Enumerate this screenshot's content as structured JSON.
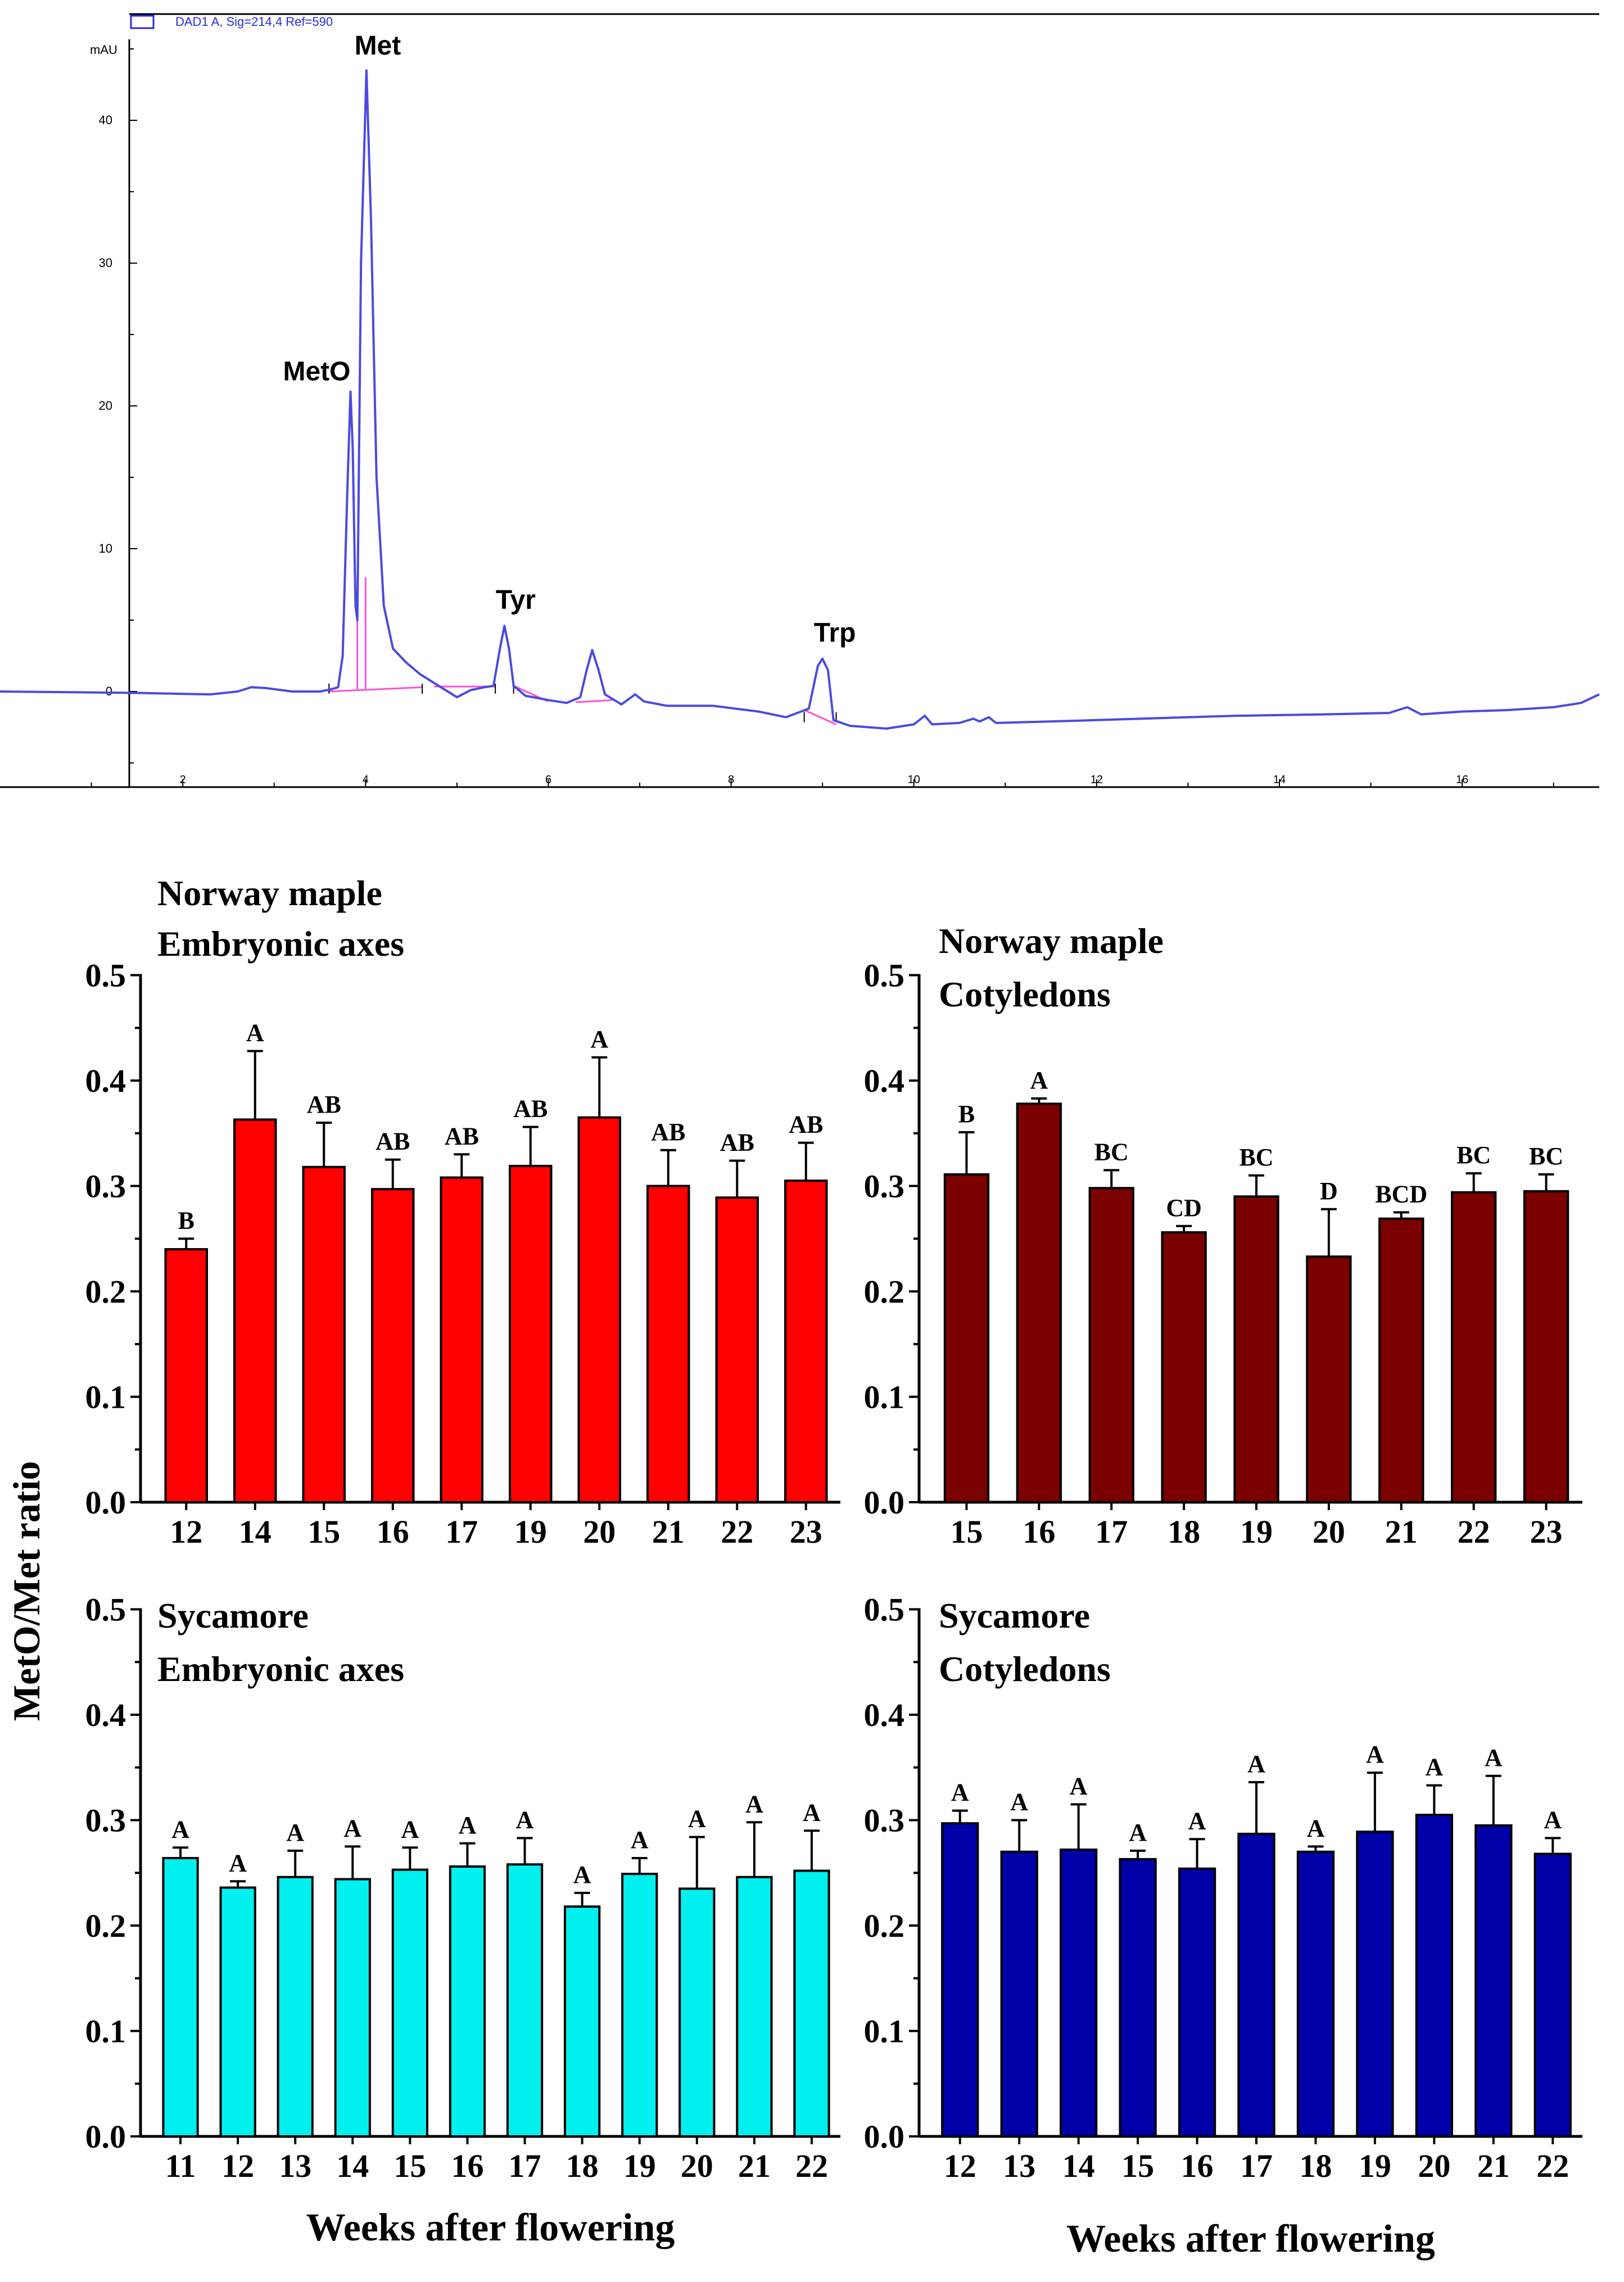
{
  "chart_data": [
    {
      "type": "line",
      "title": "",
      "legend": "DAD1 A, Sig=214,4 Ref=590",
      "ylabel": "mAU",
      "xlabel": "",
      "x_ticks": [
        2,
        4,
        6,
        8,
        10,
        12,
        14,
        16
      ],
      "y_ticks": [
        0,
        10,
        20,
        30,
        40
      ],
      "xlim": [
        0,
        17.5
      ],
      "ylim": [
        -5,
        45
      ],
      "series": [
        {
          "name": "DAD1 A",
          "color": "#4a4ae0",
          "points": [
            [
              0.0,
              0.0
            ],
            [
              1.5,
              -0.1
            ],
            [
              2.3,
              -0.2
            ],
            [
              2.6,
              0.0
            ],
            [
              2.75,
              0.3
            ],
            [
              2.9,
              0.25
            ],
            [
              3.2,
              0.0
            ],
            [
              3.5,
              0.0
            ],
            [
              3.62,
              0.15
            ],
            [
              3.7,
              0.3
            ],
            [
              3.75,
              2.5
            ],
            [
              3.8,
              14.0
            ],
            [
              3.835,
              21.0
            ],
            [
              3.86,
              17.0
            ],
            [
              3.89,
              6.0
            ],
            [
              3.91,
              5.0
            ],
            [
              3.95,
              30.0
            ],
            [
              4.01,
              43.5
            ],
            [
              4.06,
              33.0
            ],
            [
              4.12,
              15.0
            ],
            [
              4.2,
              6.0
            ],
            [
              4.3,
              3.0
            ],
            [
              4.45,
              2.0
            ],
            [
              4.6,
              1.2
            ],
            [
              4.75,
              0.6
            ],
            [
              4.9,
              0.0
            ],
            [
              5.0,
              -0.4
            ],
            [
              5.15,
              0.1
            ],
            [
              5.3,
              0.3
            ],
            [
              5.4,
              0.4
            ],
            [
              5.47,
              3.0
            ],
            [
              5.52,
              4.6
            ],
            [
              5.57,
              3.0
            ],
            [
              5.62,
              0.4
            ],
            [
              5.75,
              -0.3
            ],
            [
              6.0,
              -0.6
            ],
            [
              6.2,
              -0.8
            ],
            [
              6.35,
              -0.4
            ],
            [
              6.42,
              1.5
            ],
            [
              6.48,
              2.9
            ],
            [
              6.55,
              1.5
            ],
            [
              6.62,
              -0.2
            ],
            [
              6.8,
              -0.9
            ],
            [
              6.95,
              -0.2
            ],
            [
              7.05,
              -0.7
            ],
            [
              7.3,
              -1.0
            ],
            [
              7.8,
              -1.0
            ],
            [
              8.3,
              -1.4
            ],
            [
              8.6,
              -1.8
            ],
            [
              8.85,
              -1.2
            ],
            [
              8.95,
              1.8
            ],
            [
              9.0,
              2.3
            ],
            [
              9.06,
              1.5
            ],
            [
              9.12,
              -2.0
            ],
            [
              9.3,
              -2.4
            ],
            [
              9.7,
              -2.6
            ],
            [
              10.0,
              -2.3
            ],
            [
              10.12,
              -1.7
            ],
            [
              10.2,
              -2.3
            ],
            [
              10.5,
              -2.2
            ],
            [
              10.65,
              -1.9
            ],
            [
              10.72,
              -2.1
            ],
            [
              10.82,
              -1.8
            ],
            [
              10.9,
              -2.2
            ],
            [
              11.5,
              -2.1
            ],
            [
              12.5,
              -1.9
            ],
            [
              13.5,
              -1.7
            ],
            [
              14.5,
              -1.6
            ],
            [
              15.2,
              -1.5
            ],
            [
              15.4,
              -1.1
            ],
            [
              15.55,
              -1.6
            ],
            [
              16.0,
              -1.4
            ],
            [
              16.5,
              -1.3
            ],
            [
              17.0,
              -1.1
            ],
            [
              17.3,
              -0.8
            ],
            [
              17.5,
              -0.2
            ]
          ]
        }
      ],
      "baseline_color": "#ff4fd8",
      "annotations": [
        {
          "label": "Met",
          "x": 4.01,
          "y": 43.5
        },
        {
          "label": "MetO",
          "x": 3.835,
          "y": 21.0
        },
        {
          "label": "Tyr",
          "x": 5.52,
          "y": 4.6
        },
        {
          "label": "Trp",
          "x": 9.0,
          "y": 2.3
        }
      ]
    },
    {
      "type": "bar",
      "title": [
        "Norway maple",
        "Embryonic axes"
      ],
      "color": "#ff0000",
      "categories": [
        "12",
        "14",
        "15",
        "16",
        "17",
        "19",
        "20",
        "21",
        "22",
        "23"
      ],
      "values": [
        0.24,
        0.363,
        0.318,
        0.297,
        0.308,
        0.319,
        0.365,
        0.3,
        0.289,
        0.305
      ],
      "errors": [
        0.01,
        0.065,
        0.042,
        0.028,
        0.022,
        0.037,
        0.057,
        0.034,
        0.035,
        0.036
      ],
      "letters": [
        "B",
        "A",
        "AB",
        "AB",
        "AB",
        "AB",
        "A",
        "AB",
        "AB",
        "AB"
      ],
      "ylim": [
        0,
        0.5
      ],
      "y_ticks": [
        "0.0",
        "0.1",
        "0.2",
        "0.3",
        "0.4",
        "0.5"
      ]
    },
    {
      "type": "bar",
      "title": [
        "Norway maple",
        "Cotyledons"
      ],
      "color": "#7b0000",
      "categories": [
        "15",
        "16",
        "17",
        "18",
        "19",
        "20",
        "21",
        "22",
        "23"
      ],
      "values": [
        0.311,
        0.378,
        0.298,
        0.256,
        0.29,
        0.233,
        0.269,
        0.294,
        0.295
      ],
      "errors": [
        0.04,
        0.005,
        0.017,
        0.006,
        0.02,
        0.045,
        0.006,
        0.018,
        0.016
      ],
      "letters": [
        "B",
        "A",
        "BC",
        "CD",
        "BC",
        "D",
        "BCD",
        "BC",
        "BC"
      ],
      "ylim": [
        0,
        0.5
      ],
      "y_ticks": [
        "0.0",
        "0.1",
        "0.2",
        "0.3",
        "0.4",
        "0.5"
      ]
    },
    {
      "type": "bar",
      "title": [
        "Sycamore",
        "Embryonic axes"
      ],
      "color": "#00f0f0",
      "categories": [
        "11",
        "12",
        "13",
        "14",
        "15",
        "16",
        "17",
        "18",
        "19",
        "20",
        "21",
        "22"
      ],
      "values": [
        0.264,
        0.236,
        0.246,
        0.244,
        0.253,
        0.256,
        0.258,
        0.218,
        0.249,
        0.235,
        0.246,
        0.252
      ],
      "errors": [
        0.01,
        0.006,
        0.025,
        0.031,
        0.021,
        0.022,
        0.025,
        0.013,
        0.015,
        0.049,
        0.052,
        0.038
      ],
      "letters": [
        "A",
        "A",
        "A",
        "A",
        "A",
        "A",
        "A",
        "A",
        "A",
        "A",
        "A",
        "A"
      ],
      "xlabel": "Weeks after flowering",
      "ylim": [
        0,
        0.5
      ],
      "y_ticks": [
        "0.0",
        "0.1",
        "0.2",
        "0.3",
        "0.4",
        "0.5"
      ]
    },
    {
      "type": "bar",
      "title": [
        "Sycamore",
        "Cotyledons"
      ],
      "color": "#0000a8",
      "categories": [
        "12",
        "13",
        "14",
        "15",
        "16",
        "17",
        "18",
        "19",
        "20",
        "21",
        "22"
      ],
      "values": [
        0.297,
        0.27,
        0.272,
        0.263,
        0.254,
        0.287,
        0.27,
        0.289,
        0.305,
        0.295,
        0.268
      ],
      "errors": [
        0.012,
        0.03,
        0.043,
        0.008,
        0.028,
        0.049,
        0.005,
        0.056,
        0.028,
        0.047,
        0.015
      ],
      "letters": [
        "A",
        "A",
        "A",
        "A",
        "A",
        "A",
        "A",
        "A",
        "A",
        "A",
        "A"
      ],
      "xlabel": "Weeks after flowering",
      "ylim": [
        0,
        0.5
      ],
      "y_ticks": [
        "0.0",
        "0.1",
        "0.2",
        "0.3",
        "0.4",
        "0.5"
      ]
    }
  ],
  "shared_ylabel": "MetO/Met ratio"
}
